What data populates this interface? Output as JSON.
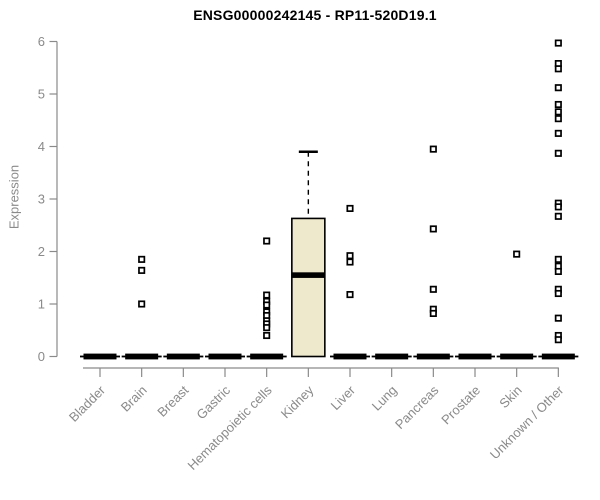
{
  "chart_data": {
    "type": "boxplot",
    "title": "ENSG00000242145 - RP11-520D19.1",
    "ylabel": "Expression",
    "xlabel": "",
    "ylim": [
      0,
      6
    ],
    "yticks": [
      0,
      1,
      2,
      3,
      4,
      5,
      6
    ],
    "grid": false,
    "legend": null,
    "categories": [
      "Bladder",
      "Brain",
      "Breast",
      "Gastric",
      "Hematopoietic cells",
      "Kidney",
      "Liver",
      "Lung",
      "Pancreas",
      "Prostate",
      "Skin",
      "Unknown / Other"
    ],
    "boxes": [
      {
        "category": "Bladder",
        "whisker_low": 0,
        "q1": 0,
        "median": 0,
        "q3": 0,
        "whisker_high": 0,
        "outliers": []
      },
      {
        "category": "Brain",
        "whisker_low": 0,
        "q1": 0,
        "median": 0,
        "q3": 0,
        "whisker_high": 0,
        "outliers": [
          1.85,
          1.64,
          1.0
        ]
      },
      {
        "category": "Breast",
        "whisker_low": 0,
        "q1": 0,
        "median": 0,
        "q3": 0,
        "whisker_high": 0,
        "outliers": []
      },
      {
        "category": "Gastric",
        "whisker_low": 0,
        "q1": 0,
        "median": 0,
        "q3": 0,
        "whisker_high": 0,
        "outliers": []
      },
      {
        "category": "Hematopoietic cells",
        "whisker_low": 0,
        "q1": 0,
        "median": 0,
        "q3": 0,
        "whisker_high": 0,
        "outliers": [
          2.2,
          1.17,
          1.05,
          0.98,
          0.85,
          0.78,
          0.68,
          0.62,
          0.55,
          0.4
        ]
      },
      {
        "category": "Kidney",
        "whisker_low": 0,
        "q1": 0,
        "median": 1.55,
        "q3": 2.63,
        "whisker_high": 3.9,
        "outliers": []
      },
      {
        "category": "Liver",
        "whisker_low": 0,
        "q1": 0,
        "median": 0,
        "q3": 0,
        "whisker_high": 0,
        "outliers": [
          2.82,
          1.92,
          1.8,
          1.18
        ]
      },
      {
        "category": "Lung",
        "whisker_low": 0,
        "q1": 0,
        "median": 0,
        "q3": 0,
        "whisker_high": 0,
        "outliers": []
      },
      {
        "category": "Pancreas",
        "whisker_low": 0,
        "q1": 0,
        "median": 0,
        "q3": 0,
        "whisker_high": 0,
        "outliers": [
          3.95,
          2.43,
          1.28,
          0.9,
          0.82
        ]
      },
      {
        "category": "Prostate",
        "whisker_low": 0,
        "q1": 0,
        "median": 0,
        "q3": 0,
        "whisker_high": 0,
        "outliers": []
      },
      {
        "category": "Skin",
        "whisker_low": 0,
        "q1": 0,
        "median": 0,
        "q3": 0,
        "whisker_high": 0,
        "outliers": [
          1.95
        ]
      },
      {
        "category": "Unknown / Other",
        "whisker_low": 0,
        "q1": 0,
        "median": 0,
        "q3": 0,
        "whisker_high": 0,
        "outliers": [
          5.97,
          5.58,
          5.48,
          5.12,
          4.8,
          4.66,
          4.53,
          4.25,
          3.87,
          2.92,
          2.85,
          2.67,
          1.85,
          1.72,
          1.62,
          1.28,
          1.2,
          0.73,
          0.4,
          0.32
        ]
      }
    ],
    "colors": {
      "box_fill": "#EEE8CD",
      "box_stroke": "#000000",
      "median": "#000000",
      "zero_bar": "#000000",
      "outlier_fill": "#FFFFFF",
      "outlier_stroke": "#000000",
      "axis": "#8A8A8A",
      "title": "#000000",
      "background": "#FFFFFF"
    }
  }
}
